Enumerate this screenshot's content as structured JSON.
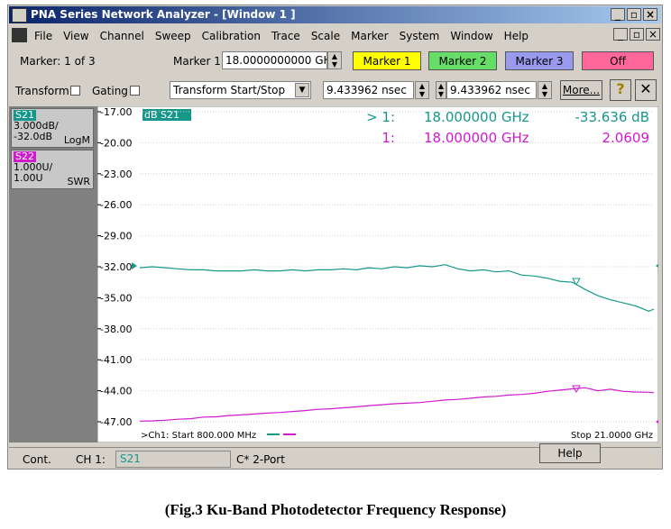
{
  "window": {
    "title": "PNA Series Network Analyzer - [Window 1 ]",
    "menu": [
      "File",
      "View",
      "Channel",
      "Sweep",
      "Calibration",
      "Trace",
      "Scale",
      "Marker",
      "System",
      "Window",
      "Help"
    ]
  },
  "toolbar": {
    "marker_count": "Marker: 1 of 3",
    "marker_label": "Marker 1",
    "marker_freq": "18.0000000000 GH:",
    "buttons": [
      "Marker 1",
      "Marker 2",
      "Marker 3",
      "Off"
    ]
  },
  "toolbar2": {
    "transform": "Transform",
    "gating": "Gating",
    "dropdown": "Transform Start/Stop",
    "start": "9.433962 nsec",
    "stop": "9.433962 nsec",
    "more": "More..."
  },
  "trace_panel": [
    {
      "scale": "3.000dB/",
      "ref": "-32.0dB",
      "format": "LogM"
    },
    {
      "scale": "1.000U/",
      "ref": "1.00U",
      "format": "SWR"
    }
  ],
  "chart_data": {
    "type": "line",
    "trace_label": "dB S21",
    "xlim": [
      0.8,
      21
    ],
    "ylim": [
      -47,
      -17
    ],
    "y2lim": [
      1,
      11
    ],
    "yticks": [
      {
        "value": -17,
        "label": "-17.00"
      },
      {
        "value": -20,
        "label": "-20.00"
      },
      {
        "value": -23,
        "label": "-23.00"
      },
      {
        "value": -26,
        "label": "-26.00"
      },
      {
        "value": -29,
        "label": "-29.00"
      },
      {
        "value": -32,
        "label": "-32.00"
      },
      {
        "value": -35,
        "label": "-35.00"
      },
      {
        "value": -38,
        "label": "-38.00"
      },
      {
        "value": -41,
        "label": "-41.00"
      },
      {
        "value": -44,
        "label": "-44.00"
      },
      {
        "value": -47,
        "label": "-47.00"
      }
    ],
    "grid": true,
    "x": [
      0.8,
      1.3,
      1.8,
      2.3,
      2.8,
      3.3,
      3.8,
      4.3,
      4.8,
      5.3,
      5.8,
      6.3,
      6.8,
      7.3,
      7.8,
      8.3,
      8.8,
      9.3,
      9.8,
      10.3,
      10.8,
      11.3,
      11.8,
      12.3,
      12.8,
      13.3,
      13.8,
      14.3,
      14.8,
      15.3,
      15.8,
      16.3,
      16.8,
      17.3,
      17.8,
      18.3,
      18.8,
      19.3,
      19.8,
      20.3,
      20.8,
      21.0
    ],
    "series": [
      {
        "name": "S21",
        "color": "#16978c",
        "values": [
          -32.1,
          -32.0,
          -32.1,
          -32.2,
          -32.3,
          -32.3,
          -32.4,
          -32.4,
          -32.4,
          -32.3,
          -32.4,
          -32.4,
          -32.3,
          -32.4,
          -32.3,
          -32.3,
          -32.2,
          -32.3,
          -32.1,
          -32.2,
          -32.0,
          -32.1,
          -31.9,
          -32.0,
          -31.8,
          -32.2,
          -32.4,
          -32.3,
          -32.5,
          -32.4,
          -32.8,
          -32.9,
          -33.1,
          -33.4,
          -33.5,
          -34.2,
          -34.8,
          -35.2,
          -35.5,
          -35.8,
          -36.3,
          -36.1
        ]
      },
      {
        "name": "S22",
        "color": "#d01ad0",
        "axis": "y2",
        "values": [
          1.02,
          1.03,
          1.05,
          1.08,
          1.1,
          1.15,
          1.16,
          1.2,
          1.22,
          1.25,
          1.28,
          1.3,
          1.33,
          1.36,
          1.4,
          1.42,
          1.45,
          1.48,
          1.52,
          1.55,
          1.58,
          1.6,
          1.62,
          1.66,
          1.7,
          1.72,
          1.76,
          1.8,
          1.82,
          1.86,
          1.88,
          1.92,
          1.98,
          2.02,
          2.06,
          2.1,
          2.0,
          2.05,
          1.98,
          1.96,
          1.95,
          1.94
        ]
      }
    ],
    "start_label": ">Ch1: Start  800.000 MHz",
    "stop_label": "Stop  21.0000 GHz"
  },
  "markers": [
    {
      "id": "> 1:",
      "freq": "18.000000 GHz",
      "value": "-33.636 dB"
    },
    {
      "id": "1:",
      "freq": "18.000000 GHz",
      "value": "2.0609"
    }
  ],
  "status": {
    "mode": "Cont.",
    "channel": "CH 1:",
    "param": "S21",
    "cal": "C* 2-Port",
    "help": "Help"
  },
  "caption": "(Fig.3 Ku-Band Photodetector Frequency Response)"
}
